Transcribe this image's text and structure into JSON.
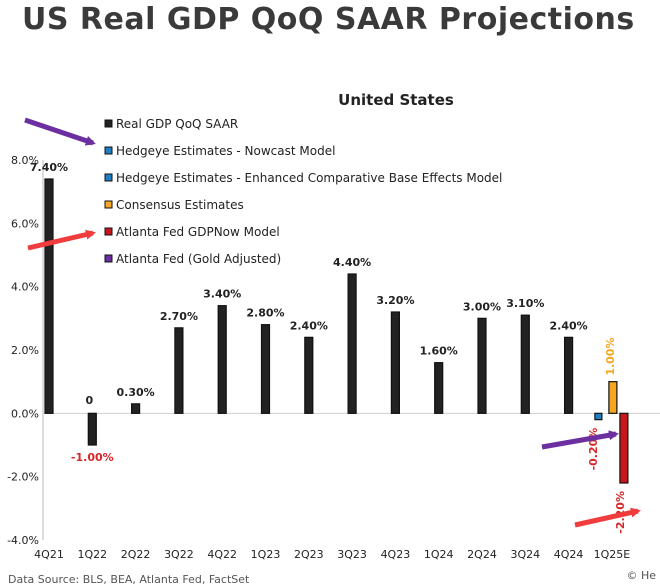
{
  "page_title": "US Real GDP QoQ SAAR Projections",
  "source_text": "Data Source: BLS, BEA, Atlanta Fed, FactSet",
  "corner_text": "© He",
  "colors": {
    "real_gdp": "#222222",
    "nowcast": "#1f7fc4",
    "enhanced": "#1f7fc4",
    "consensus": "#f5a623",
    "atlanta": "#c8161d",
    "gold": "#6b2fa0",
    "arrow_red": "#f03c3c",
    "arrow_purple": "#6b2fa0",
    "negative_label": "#d62728"
  },
  "chart_data": {
    "type": "bar",
    "title": "United States",
    "categories": [
      "4Q21",
      "1Q22",
      "2Q22",
      "3Q22",
      "4Q22",
      "1Q23",
      "2Q23",
      "3Q23",
      "4Q23",
      "1Q24",
      "2Q24",
      "3Q24",
      "4Q24",
      "1Q25E"
    ],
    "ylim": [
      -4.0,
      8.0
    ],
    "yticks": [
      -4.0,
      -2.0,
      0.0,
      2.0,
      4.0,
      6.0,
      8.0
    ],
    "ytick_labels": [
      "-4.0%",
      "-2.0%",
      "0.0%",
      "2.0%",
      "4.0%",
      "6.0%",
      "8.0%"
    ],
    "series": [
      {
        "name": "Real GDP QoQ SAAR",
        "color_key": "real_gdp",
        "values": [
          7.4,
          -1.0,
          0.3,
          2.7,
          3.4,
          2.8,
          2.4,
          4.4,
          3.2,
          1.6,
          3.0,
          3.1,
          2.4,
          null
        ],
        "labels": [
          "7.40%",
          "-1.00%",
          "0.30%",
          "2.70%",
          "3.40%",
          "2.80%",
          "2.40%",
          "4.40%",
          "3.20%",
          "1.60%",
          "3.00%",
          "3.10%",
          "2.40%",
          ""
        ]
      },
      {
        "name": "Hedgeye Estimates - Nowcast Model",
        "color_key": "nowcast",
        "values": [
          null,
          null,
          null,
          null,
          null,
          null,
          null,
          null,
          null,
          null,
          null,
          null,
          null,
          -0.2
        ],
        "labels": [
          "",
          "",
          "",
          "",
          "",
          "",
          "",
          "",
          "",
          "",
          "",
          "",
          "",
          "-0.20%"
        ]
      },
      {
        "name": "Hedgeye Estimates - Enhanced Comparative Base Effects Model",
        "color_key": "enhanced",
        "values": [
          null,
          null,
          null,
          null,
          null,
          null,
          null,
          null,
          null,
          null,
          null,
          null,
          null,
          null
        ],
        "labels": []
      },
      {
        "name": "Consensus Estimates",
        "color_key": "consensus",
        "values": [
          null,
          null,
          null,
          null,
          null,
          null,
          null,
          null,
          null,
          null,
          null,
          null,
          null,
          1.0
        ],
        "labels": [
          "",
          "",
          "",
          "",
          "",
          "",
          "",
          "",
          "",
          "",
          "",
          "",
          "",
          "1.00%"
        ]
      },
      {
        "name": "Atlanta Fed GDPNow Model",
        "color_key": "atlanta",
        "values": [
          null,
          null,
          null,
          null,
          null,
          null,
          null,
          null,
          null,
          null,
          null,
          null,
          null,
          -2.2
        ],
        "labels": [
          "",
          "",
          "",
          "",
          "",
          "",
          "",
          "",
          "",
          "",
          "",
          "",
          "",
          "-2.20%"
        ]
      },
      {
        "name": "Atlanta Fed (Gold Adjusted)",
        "color_key": "gold",
        "values": [
          null,
          null,
          null,
          null,
          null,
          null,
          null,
          null,
          null,
          null,
          null,
          null,
          null,
          null
        ],
        "labels": []
      }
    ],
    "annotations": [
      "0"
    ],
    "legend_position": "top-left"
  }
}
